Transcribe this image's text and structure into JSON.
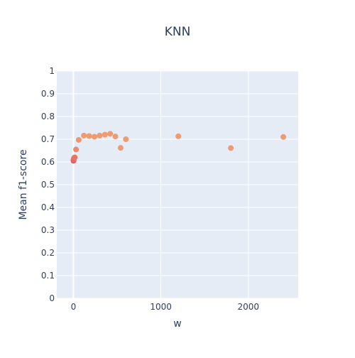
{
  "chart_data": {
    "type": "scatter",
    "title": "KNN",
    "xlabel": "w",
    "ylabel": "Mean f1-score",
    "xlim": [
      -190,
      2570
    ],
    "ylim": [
      0,
      1
    ],
    "x_ticks": [
      0,
      1000,
      2000
    ],
    "x_tick_labels": [
      "0",
      "1000",
      "2000"
    ],
    "y_ticks": [
      0,
      0.1,
      0.2,
      0.3,
      0.4,
      0.5,
      0.6,
      0.7,
      0.8,
      0.9,
      1
    ],
    "y_tick_labels": [
      "0",
      "0.1",
      "0.2",
      "0.3",
      "0.4",
      "0.5",
      "0.6",
      "0.7",
      "0.8",
      "0.9",
      "1"
    ],
    "grid": true,
    "legend": false,
    "colors": {
      "plot_background": "#e5ecf6",
      "grid": "#ffffff",
      "text": "#2a3f5f"
    },
    "points": [
      {
        "x": 1,
        "y": 0.605,
        "color": "#df6060"
      },
      {
        "x": 2,
        "y": 0.61,
        "color": "#df6060"
      },
      {
        "x": 3,
        "y": 0.607,
        "color": "#e06464"
      },
      {
        "x": 4,
        "y": 0.612,
        "color": "#e06864"
      },
      {
        "x": 5,
        "y": 0.615,
        "color": "#e26b66"
      },
      {
        "x": 10,
        "y": 0.618,
        "color": "#e46f66"
      },
      {
        "x": 15,
        "y": 0.62,
        "color": "#e67468"
      },
      {
        "x": 30,
        "y": 0.655,
        "color": "#ec8a6c"
      },
      {
        "x": 60,
        "y": 0.697,
        "color": "#ee976e"
      },
      {
        "x": 120,
        "y": 0.716,
        "color": "#ef9a70"
      },
      {
        "x": 180,
        "y": 0.714,
        "color": "#ef9a70"
      },
      {
        "x": 240,
        "y": 0.711,
        "color": "#ef9a70"
      },
      {
        "x": 300,
        "y": 0.716,
        "color": "#ef9a70"
      },
      {
        "x": 360,
        "y": 0.72,
        "color": "#ef9a70"
      },
      {
        "x": 420,
        "y": 0.724,
        "color": "#ef9a70"
      },
      {
        "x": 480,
        "y": 0.712,
        "color": "#ef9a70"
      },
      {
        "x": 540,
        "y": 0.662,
        "color": "#ef9a70"
      },
      {
        "x": 600,
        "y": 0.7,
        "color": "#ef9a70"
      },
      {
        "x": 1200,
        "y": 0.713,
        "color": "#ef9a70"
      },
      {
        "x": 1800,
        "y": 0.661,
        "color": "#ef9a70"
      },
      {
        "x": 2400,
        "y": 0.71,
        "color": "#ef9a70"
      }
    ]
  }
}
